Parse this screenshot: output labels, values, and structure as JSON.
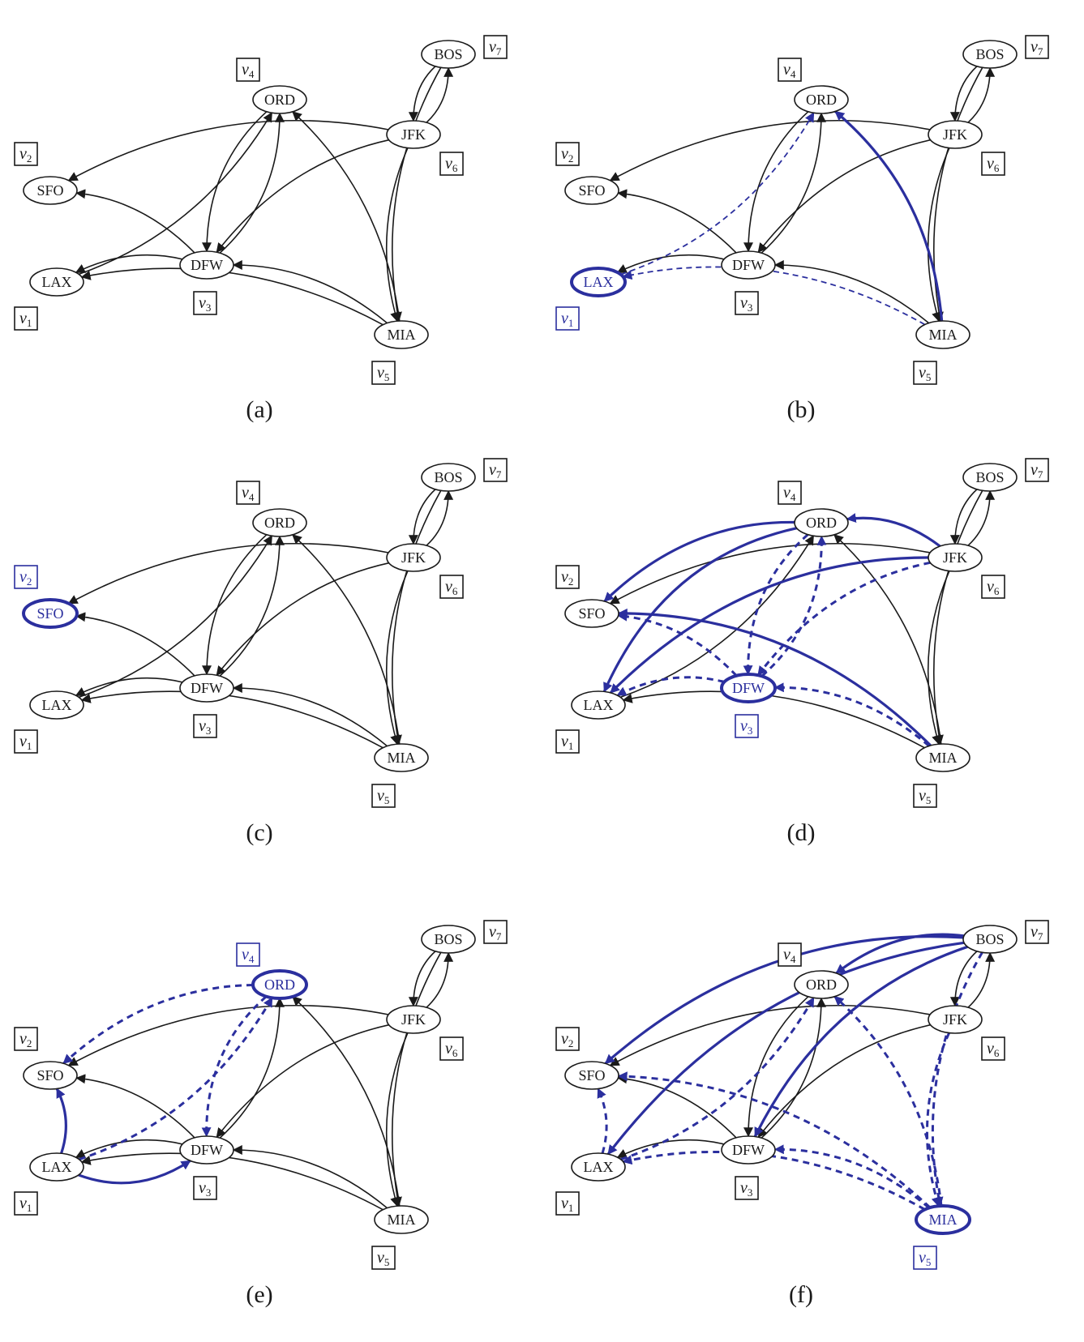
{
  "figure": {
    "colors": {
      "black": "#1a1a1a",
      "blue": "#2b2f9e"
    },
    "nodes": [
      {
        "id": "LAX",
        "label": "LAX",
        "vertex": "v",
        "sub": "1"
      },
      {
        "id": "SFO",
        "label": "SFO",
        "vertex": "v",
        "sub": "2"
      },
      {
        "id": "DFW",
        "label": "DFW",
        "vertex": "v",
        "sub": "3"
      },
      {
        "id": "ORD",
        "label": "ORD",
        "vertex": "v",
        "sub": "4"
      },
      {
        "id": "MIA",
        "label": "MIA",
        "vertex": "v",
        "sub": "5"
      },
      {
        "id": "JFK",
        "label": "JFK",
        "vertex": "v",
        "sub": "6"
      },
      {
        "id": "BOS",
        "label": "BOS",
        "vertex": "v",
        "sub": "7"
      }
    ],
    "graph_edges": [
      [
        "LAX",
        "ORD"
      ],
      [
        "ORD",
        "DFW"
      ],
      [
        "DFW",
        "ORD"
      ],
      [
        "DFW",
        "SFO"
      ],
      [
        "DFW",
        "LAX"
      ],
      [
        "MIA",
        "DFW"
      ],
      [
        "MIA",
        "LAX"
      ],
      [
        "MIA",
        "ORD"
      ],
      [
        "JFK",
        "SFO"
      ],
      [
        "JFK",
        "DFW"
      ],
      [
        "JFK",
        "MIA"
      ],
      [
        "JFK",
        "BOS"
      ],
      [
        "BOS",
        "JFK"
      ],
      [
        "BOS",
        "MIA"
      ]
    ],
    "panels": [
      {
        "caption": "(a)",
        "current": null,
        "tree": [],
        "back": []
      },
      {
        "caption": "(b)",
        "current": "LAX",
        "tree": [
          [
            "MIA",
            "ORD"
          ]
        ],
        "back": [
          [
            "LAX",
            "ORD"
          ],
          [
            "MIA",
            "LAX"
          ]
        ]
      },
      {
        "caption": "(c)",
        "current": "SFO",
        "tree": [],
        "back": []
      },
      {
        "caption": "(d)",
        "current": "DFW",
        "tree": [
          [
            "ORD",
            "SFO"
          ],
          [
            "ORD",
            "LAX"
          ],
          [
            "JFK",
            "ORD"
          ],
          [
            "JFK",
            "LAX"
          ],
          [
            "MIA",
            "SFO"
          ]
        ],
        "back": [
          [
            "ORD",
            "DFW"
          ],
          [
            "DFW",
            "ORD"
          ],
          [
            "DFW",
            "SFO"
          ],
          [
            "DFW",
            "LAX"
          ],
          [
            "JFK",
            "DFW"
          ],
          [
            "MIA",
            "DFW"
          ]
        ]
      },
      {
        "caption": "(e)",
        "current": "ORD",
        "tree": [
          [
            "LAX",
            "SFO"
          ],
          [
            "LAX",
            "DFW"
          ]
        ],
        "back": [
          [
            "ORD",
            "SFO"
          ],
          [
            "LAX",
            "ORD"
          ],
          [
            "ORD",
            "DFW"
          ]
        ]
      },
      {
        "caption": "(f)",
        "current": "MIA",
        "tree": [
          [
            "BOS",
            "SFO"
          ],
          [
            "BOS",
            "ORD"
          ],
          [
            "BOS",
            "DFW"
          ],
          [
            "BOS",
            "LAX"
          ]
        ],
        "back": [
          [
            "LAX",
            "ORD"
          ],
          [
            "LAX",
            "SFO"
          ],
          [
            "MIA",
            "ORD"
          ],
          [
            "MIA",
            "DFW"
          ],
          [
            "MIA",
            "LAX"
          ],
          [
            "MIA",
            "SFO"
          ],
          [
            "JFK",
            "MIA"
          ],
          [
            "BOS",
            "MIA"
          ]
        ]
      }
    ]
  }
}
